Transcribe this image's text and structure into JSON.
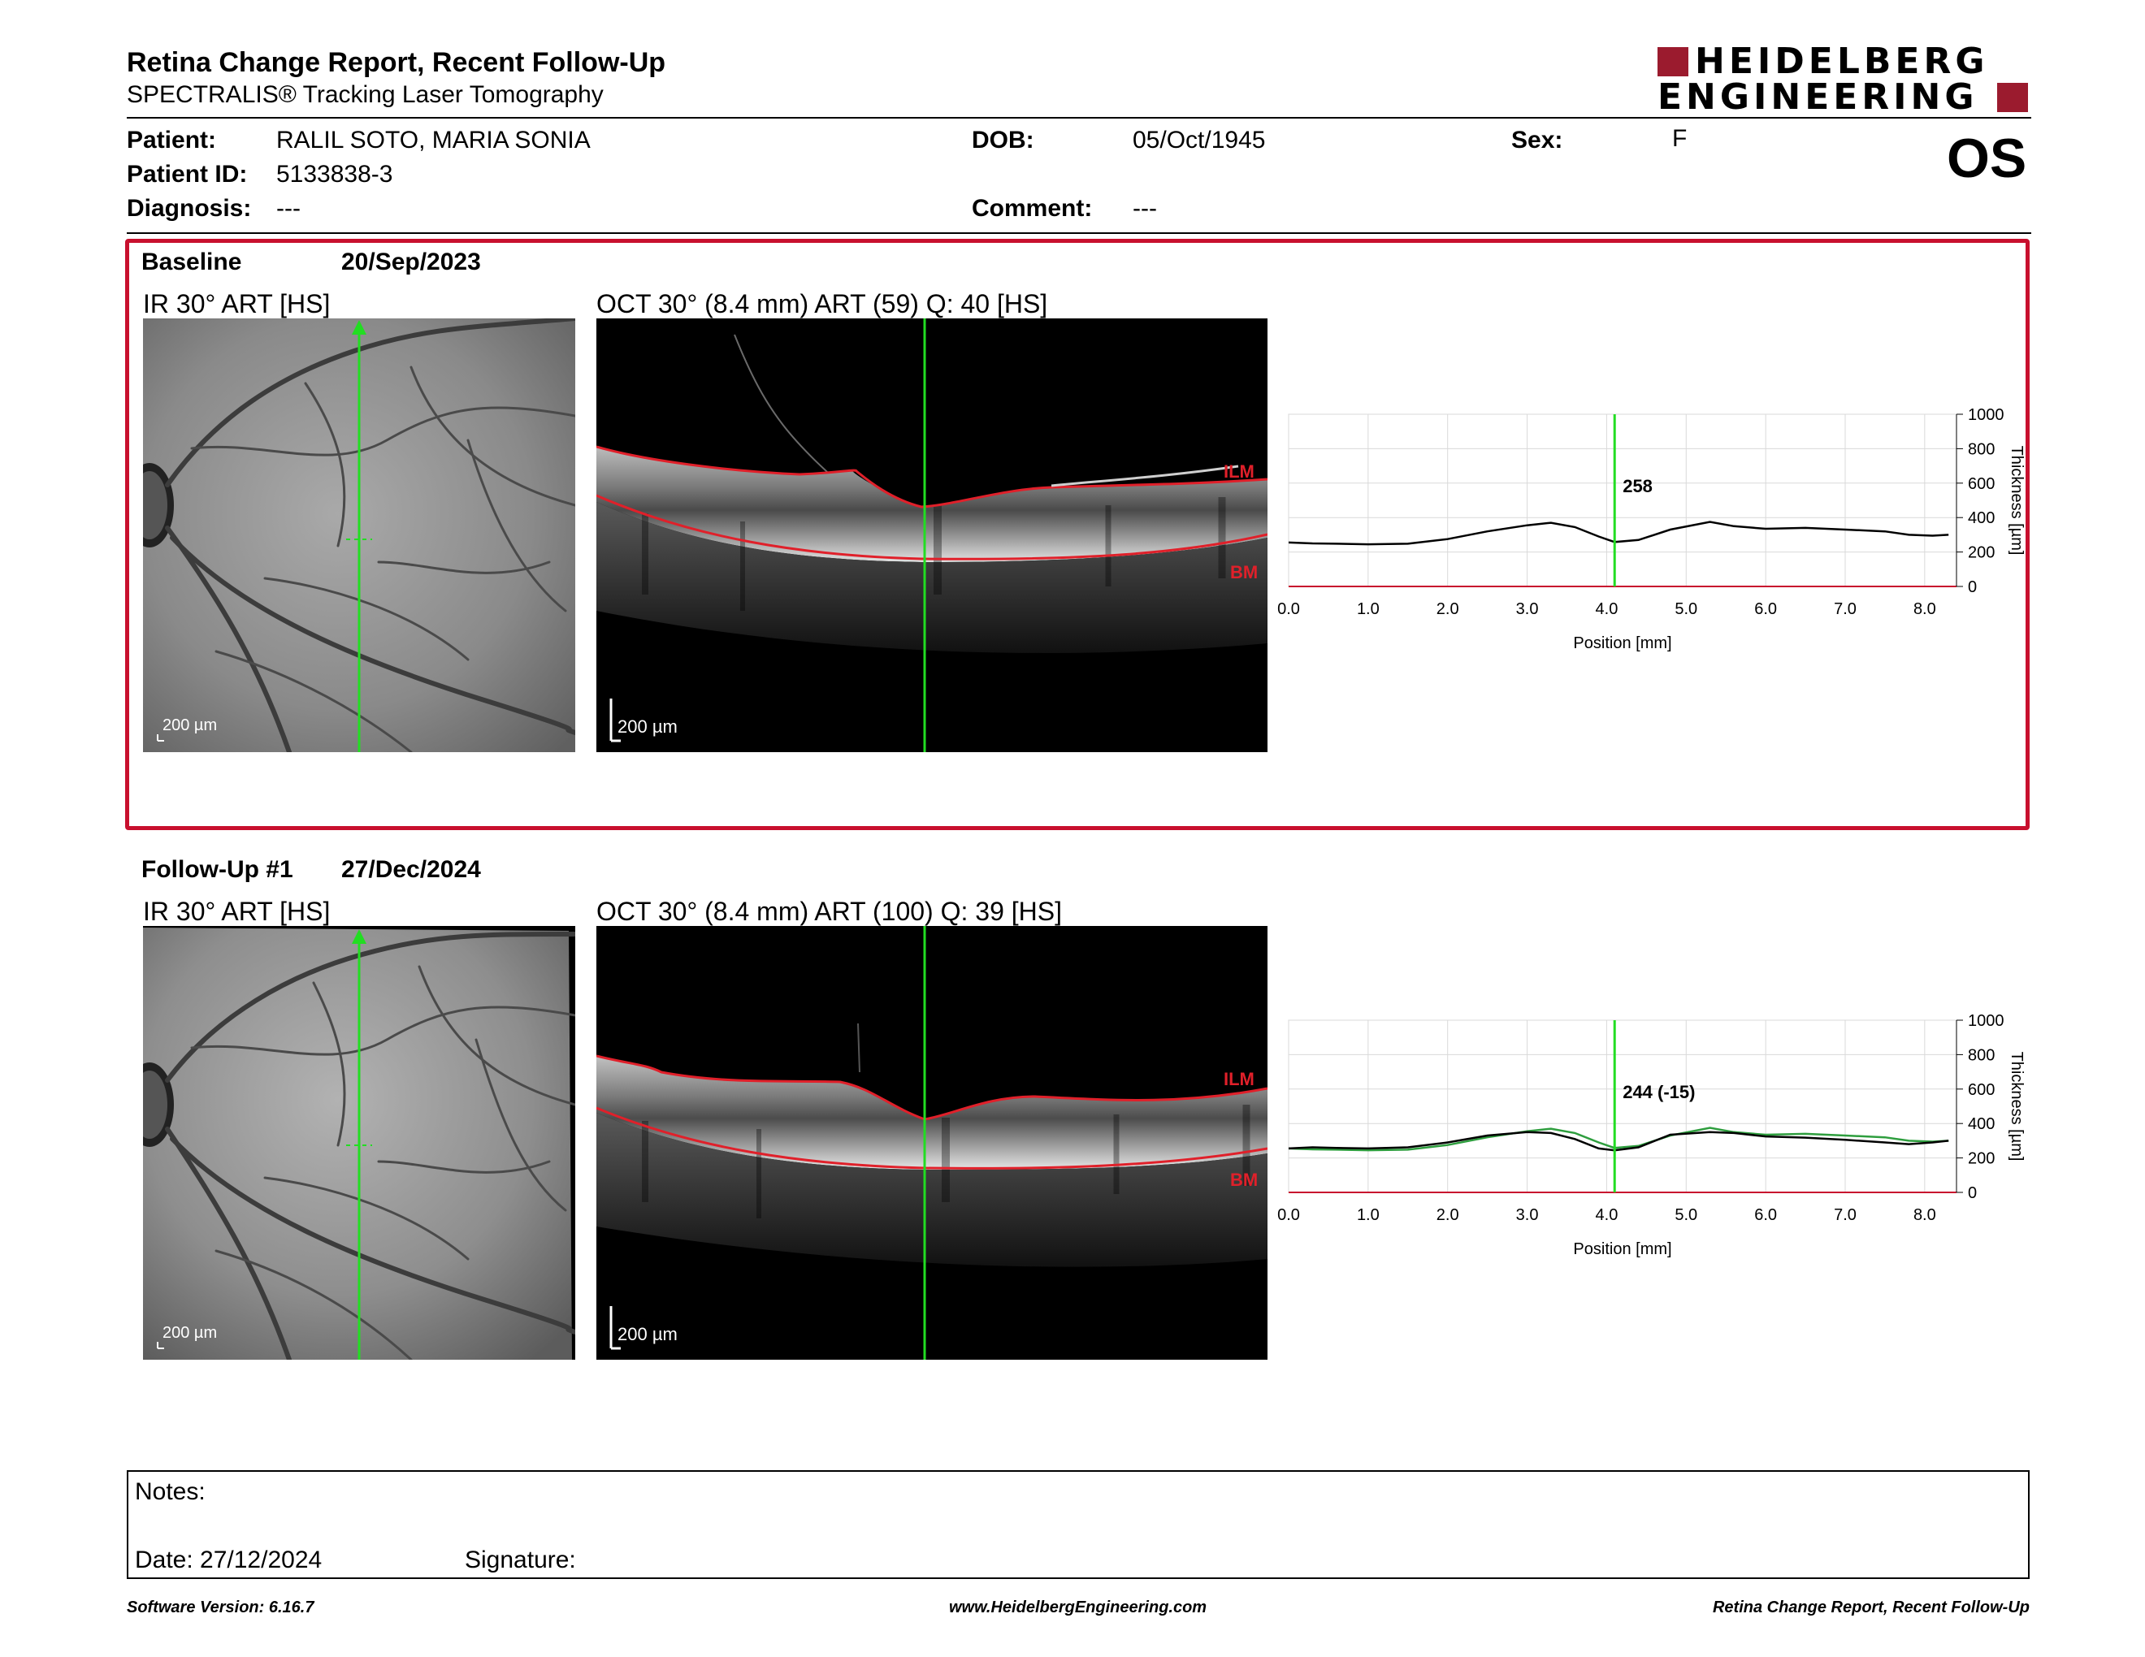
{
  "header": {
    "title": "Retina Change Report, Recent Follow-Up",
    "subtitle": "SPECTRALIS® Tracking Laser Tomography",
    "logo_line1": "HEIDELBERG",
    "logo_line2": "ENGINEERING",
    "eye": "OS"
  },
  "patient": {
    "patient_label": "Patient:",
    "patient_value": "RALIL SOTO, MARIA SONIA",
    "id_label": "Patient ID:",
    "id_value": "5133838-3",
    "diagnosis_label": "Diagnosis:",
    "diagnosis_value": "---",
    "dob_label": "DOB:",
    "dob_value": "05/Oct/1945",
    "comment_label": "Comment:",
    "comment_value": "---",
    "sex_label": "Sex:",
    "sex_value": "F"
  },
  "colors": {
    "frame": "#c8102e",
    "scan_line": "#22dd22",
    "layer": "#e0202a",
    "logo": "#9b1b2e"
  },
  "exams": [
    {
      "label": "Baseline",
      "date": "20/Sep/2023",
      "ir_title": "IR 30° ART [HS]",
      "oct_title": "OCT 30° (8.4 mm) ART (59) Q: 40 [HS]",
      "scale_ir": "200 µm",
      "scale_oct": "200 µm",
      "ilm_label": "ILM",
      "bm_label": "BM",
      "annotation": "258"
    },
    {
      "label": "Follow-Up #1",
      "date": "27/Dec/2024",
      "ir_title": "IR 30° ART [HS]",
      "oct_title": "OCT 30° (8.4 mm) ART (100) Q: 39 [HS]",
      "scale_ir": "200 µm",
      "scale_oct": "200 µm",
      "ilm_label": "ILM",
      "bm_label": "BM",
      "annotation": "244 (-15)"
    }
  ],
  "chart_data": [
    {
      "type": "line",
      "xlabel": "Position [mm]",
      "ylabel": "Thickness [µm]",
      "xlim": [
        0,
        8.4
      ],
      "ylim": [
        0,
        1000
      ],
      "xticks": [
        "0.0",
        "1.0",
        "2.0",
        "3.0",
        "4.0",
        "5.0",
        "6.0",
        "7.0",
        "8.0"
      ],
      "yticks": [
        "0",
        "200",
        "400",
        "600",
        "800",
        "1000"
      ],
      "marker_x": 4.1,
      "annotation": "258",
      "series": [
        {
          "color": "#000000",
          "x": [
            0,
            0.3,
            0.6,
            1.0,
            1.5,
            2.0,
            2.5,
            3.0,
            3.3,
            3.6,
            3.9,
            4.1,
            4.4,
            4.8,
            5.3,
            5.6,
            6.0,
            6.5,
            7.0,
            7.5,
            7.8,
            8.1,
            8.3
          ],
          "y": [
            255,
            250,
            248,
            245,
            248,
            275,
            320,
            355,
            370,
            345,
            290,
            258,
            270,
            330,
            375,
            350,
            335,
            340,
            330,
            320,
            300,
            295,
            300
          ]
        }
      ]
    },
    {
      "type": "line",
      "xlabel": "Position [mm]",
      "ylabel": "Thickness [µm]",
      "xlim": [
        0,
        8.4
      ],
      "ylim": [
        0,
        1000
      ],
      "xticks": [
        "0.0",
        "1.0",
        "2.0",
        "3.0",
        "4.0",
        "5.0",
        "6.0",
        "7.0",
        "8.0"
      ],
      "yticks": [
        "0",
        "200",
        "400",
        "600",
        "800",
        "1000"
      ],
      "marker_x": 4.1,
      "annotation": "244 (-15)",
      "series": [
        {
          "color": "#000000",
          "x": [
            0,
            0.3,
            0.6,
            1.0,
            1.5,
            2.0,
            2.5,
            3.0,
            3.3,
            3.6,
            3.9,
            4.1,
            4.4,
            4.8,
            5.3,
            5.6,
            6.0,
            6.5,
            7.0,
            7.5,
            7.8,
            8.1,
            8.3
          ],
          "y": [
            255,
            262,
            258,
            255,
            262,
            290,
            330,
            350,
            345,
            310,
            255,
            244,
            262,
            335,
            350,
            345,
            325,
            318,
            305,
            290,
            280,
            290,
            300
          ]
        },
        {
          "color": "#2e9e3e",
          "x": [
            0,
            0.3,
            0.6,
            1.0,
            1.5,
            2.0,
            2.5,
            3.0,
            3.3,
            3.6,
            3.9,
            4.1,
            4.4,
            4.8,
            5.3,
            5.6,
            6.0,
            6.5,
            7.0,
            7.5,
            7.8,
            8.1,
            8.3
          ],
          "y": [
            255,
            250,
            248,
            245,
            248,
            275,
            320,
            355,
            370,
            345,
            290,
            258,
            270,
            330,
            375,
            350,
            335,
            340,
            330,
            320,
            300,
            295,
            300
          ]
        }
      ]
    }
  ],
  "notes": {
    "notes_label": "Notes:",
    "date_label": "Date: 27/12/2024",
    "signature_label": "Signature:"
  },
  "footer": {
    "software": "Software Version: 6.16.7",
    "website": "www.HeidelbergEngineering.com",
    "report": "Retina Change Report, Recent Follow-Up"
  }
}
